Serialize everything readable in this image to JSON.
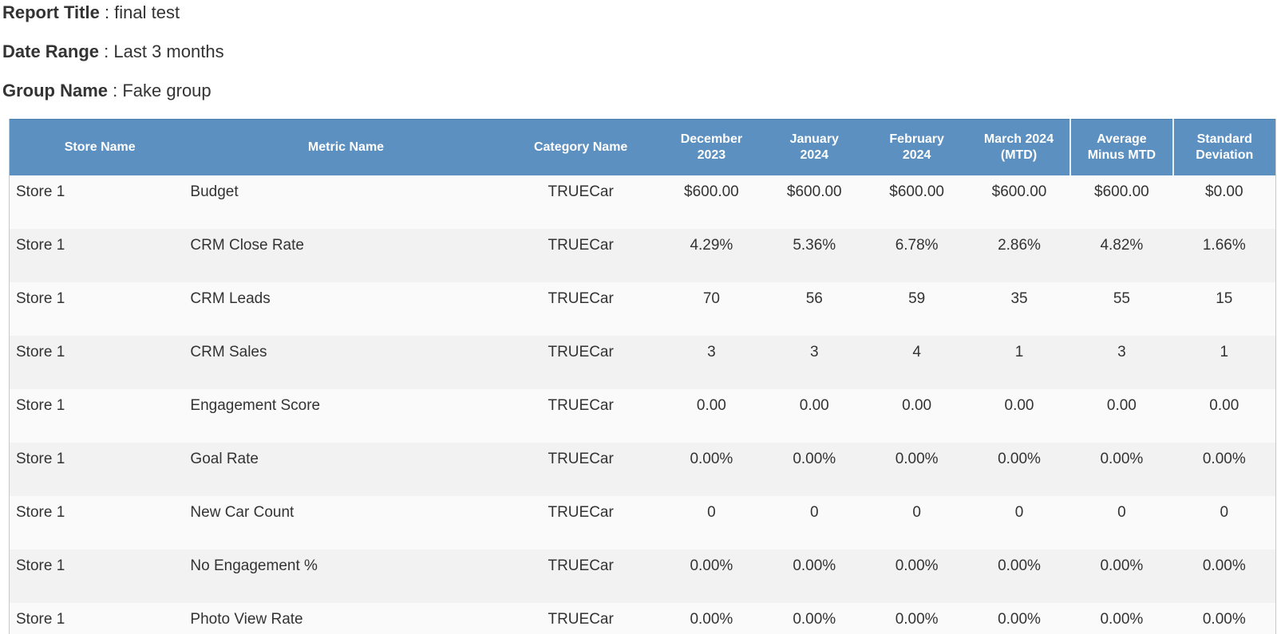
{
  "report": {
    "title_label": "Report Title",
    "title_value": " : final test",
    "date_label": "Date Range",
    "date_value": " : Last 3 months",
    "group_label": "Group Name",
    "group_value": " : Fake group"
  },
  "table": {
    "headers": [
      "Store Name",
      "Metric Name",
      "Category Name",
      "December\n2023",
      "January\n2024",
      "February\n2024",
      "March 2024\n(MTD)",
      "Average\nMinus MTD",
      "Standard\nDeviation"
    ],
    "rows": [
      [
        "Store 1",
        "Budget",
        "TRUECar",
        "$600.00",
        "$600.00",
        "$600.00",
        "$600.00",
        "$600.00",
        "$0.00"
      ],
      [
        "Store 1",
        "CRM Close Rate",
        "TRUECar",
        "4.29%",
        "5.36%",
        "6.78%",
        "2.86%",
        "4.82%",
        "1.66%"
      ],
      [
        "Store 1",
        "CRM Leads",
        "TRUECar",
        "70",
        "56",
        "59",
        "35",
        "55",
        "15"
      ],
      [
        "Store 1",
        "CRM Sales",
        "TRUECar",
        "3",
        "3",
        "4",
        "1",
        "3",
        "1"
      ],
      [
        "Store 1",
        "Engagement Score",
        "TRUECar",
        "0.00",
        "0.00",
        "0.00",
        "0.00",
        "0.00",
        "0.00"
      ],
      [
        "Store 1",
        "Goal Rate",
        "TRUECar",
        "0.00%",
        "0.00%",
        "0.00%",
        "0.00%",
        "0.00%",
        "0.00%"
      ],
      [
        "Store 1",
        "New Car Count",
        "TRUECar",
        "0",
        "0",
        "0",
        "0",
        "0",
        "0"
      ],
      [
        "Store 1",
        "No Engagement %",
        "TRUECar",
        "0.00%",
        "0.00%",
        "0.00%",
        "0.00%",
        "0.00%",
        "0.00%"
      ],
      [
        "Store 1",
        "Photo View Rate",
        "TRUECar",
        "0.00%",
        "0.00%",
        "0.00%",
        "0.00%",
        "0.00%",
        "0.00%"
      ]
    ]
  }
}
